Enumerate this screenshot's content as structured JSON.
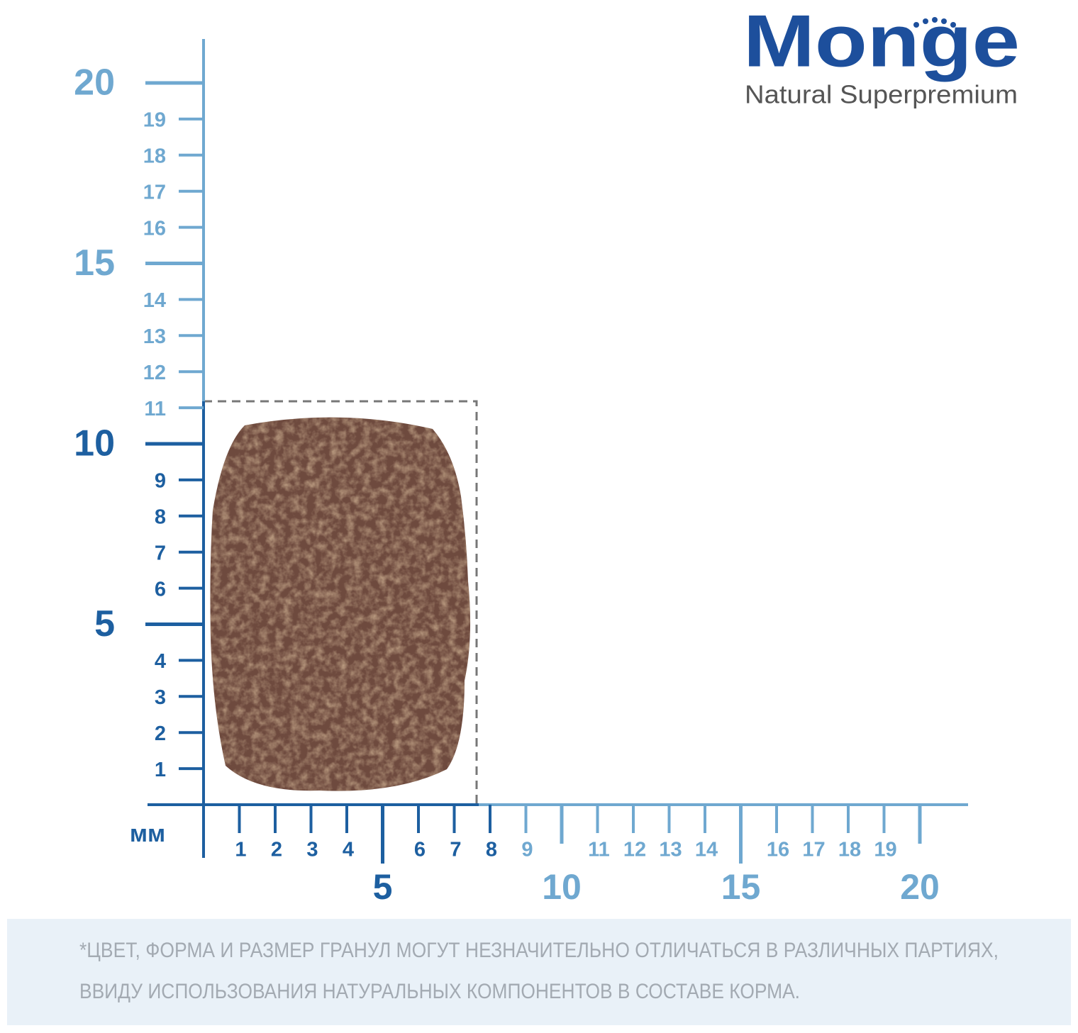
{
  "logo": {
    "brand": "Monge",
    "tagline": "Natural Superpremium"
  },
  "y_axis": {
    "dark": [
      1,
      2,
      3,
      4,
      5,
      6,
      7,
      8,
      9,
      10
    ],
    "light": [
      11,
      12,
      13,
      14,
      15,
      16,
      17,
      18,
      19,
      20
    ]
  },
  "x_axis": {
    "unit": "мм",
    "dark": [
      1,
      2,
      3,
      4,
      5,
      6,
      7,
      8
    ],
    "light": [
      9,
      10,
      11,
      12,
      13,
      14,
      15,
      16,
      17,
      18,
      19,
      20
    ]
  },
  "disclaimer": [
    "*ЦВЕТ, ФОРМА И РАЗМЕР ГРАНУЛ МОГУТ НЕЗНАЧИТЕЛЬНО ОТЛИЧАТЬСЯ В РАЗЛИЧНЫХ ПАРТИЯХ,",
    "ВВИДУ ИСПОЛЬЗОВАНИЯ НАТУРАЛЬНЫХ КОМПОНЕНТОВ В СОСТАВЕ КОРМА."
  ]
}
